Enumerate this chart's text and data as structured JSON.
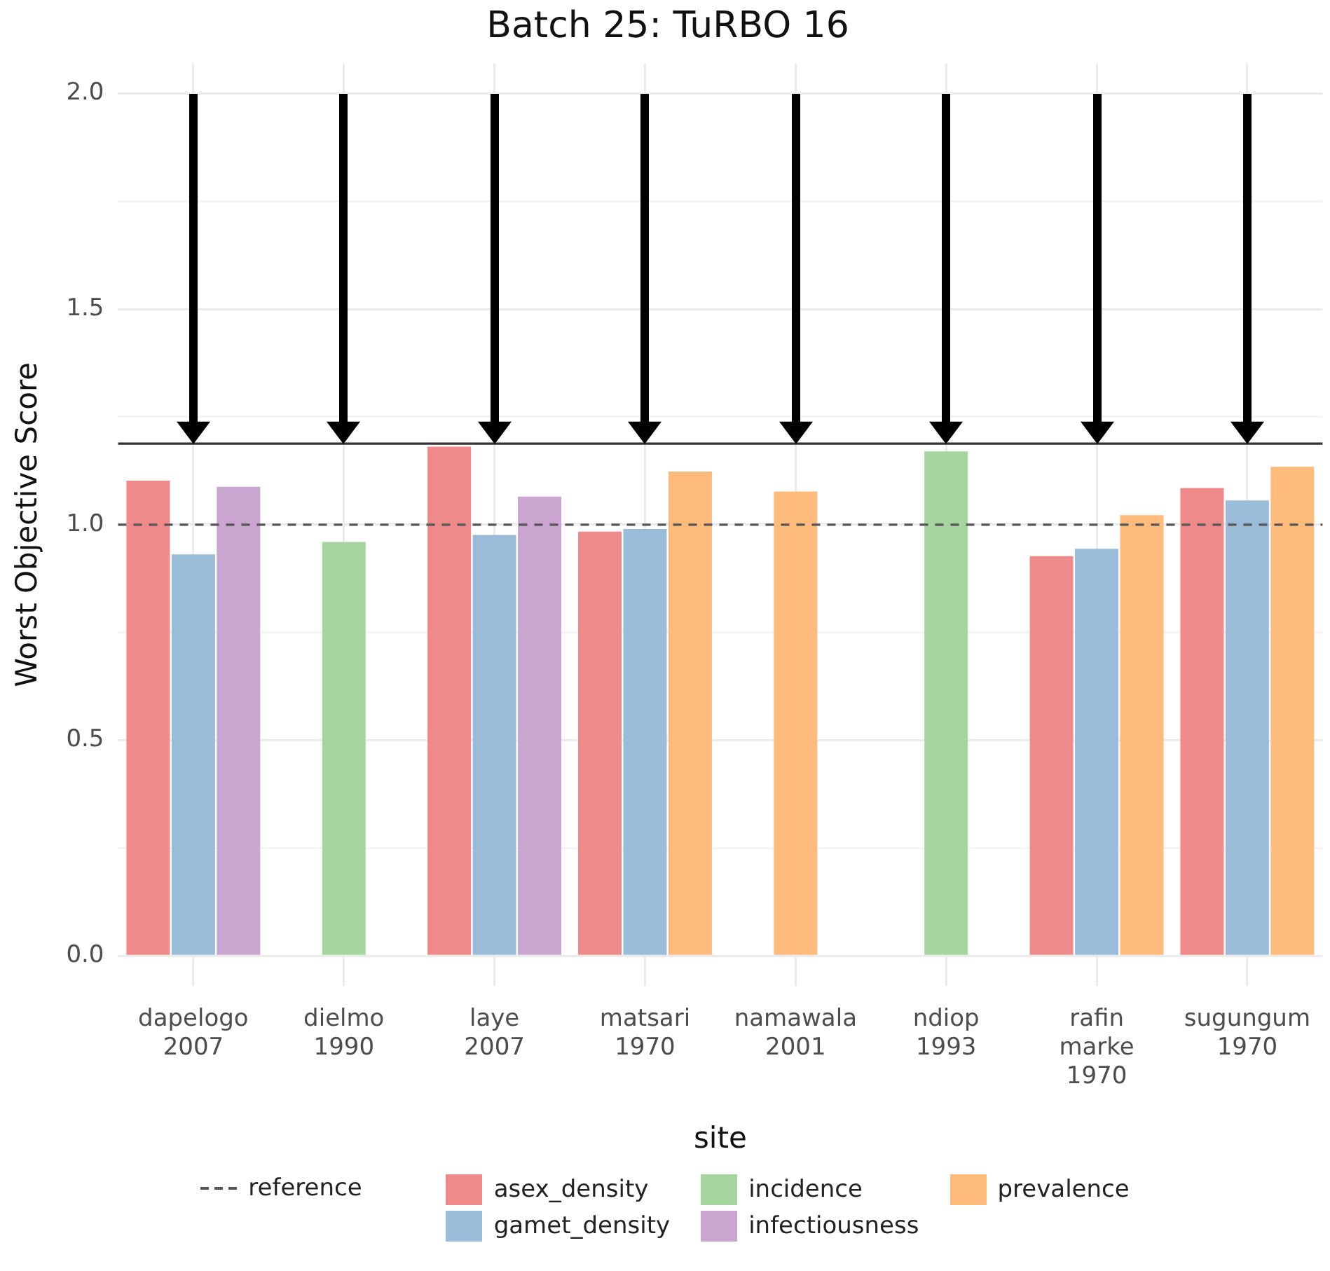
{
  "chart_data": {
    "type": "bar",
    "title": "Batch 25: TuRBO 16",
    "xlabel": "site",
    "ylabel": "Worst Objective Score",
    "categories": [
      "dapelogo\n2007",
      "dielmo\n1990",
      "laye\n2007",
      "matsari\n1970",
      "namawala\n2001",
      "ndiop\n1993",
      "rafin\nmarke\n1970",
      "sugungum\n1970"
    ],
    "series": [
      {
        "name": "asex_density",
        "color": "#ef8a8a",
        "values": [
          1.102,
          null,
          1.181,
          0.984,
          null,
          null,
          0.927,
          1.085
        ]
      },
      {
        "name": "gamet_density",
        "color": "#9bbcd9",
        "values": [
          0.931,
          null,
          0.976,
          0.99,
          null,
          null,
          0.944,
          1.056
        ]
      },
      {
        "name": "incidence",
        "color": "#a6d5a0",
        "values": [
          null,
          0.96,
          null,
          null,
          null,
          1.17,
          null,
          null
        ]
      },
      {
        "name": "infectiousness",
        "color": "#c9a5cf",
        "values": [
          1.088,
          null,
          1.065,
          null,
          null,
          null,
          null,
          null
        ]
      },
      {
        "name": "prevalence",
        "color": "#ffbb7b",
        "values": [
          null,
          null,
          null,
          1.123,
          1.077,
          null,
          1.022,
          1.134
        ]
      }
    ],
    "ylim": [
      -0.07,
      2.07
    ],
    "yticks": [
      {
        "value": 0,
        "label": "0.0"
      },
      {
        "value": 0.25,
        "label": null
      },
      0.5,
      {
        "value": 0.75,
        "label": null
      },
      {
        "value": 1,
        "label": "1.0"
      },
      {
        "value": 1.25,
        "label": null
      },
      1.5,
      {
        "value": 1.75,
        "label": null
      },
      {
        "value": 2,
        "label": "2.0"
      }
    ],
    "ref_lines": [
      {
        "axis": "y",
        "value": 1.0,
        "label": "reference",
        "color": "#555555",
        "line_style": "dashed"
      },
      {
        "axis": "y",
        "value": 1.188,
        "color": "#333333",
        "line_style": "solid"
      }
    ],
    "grid": true,
    "legend": "bottom"
  }
}
